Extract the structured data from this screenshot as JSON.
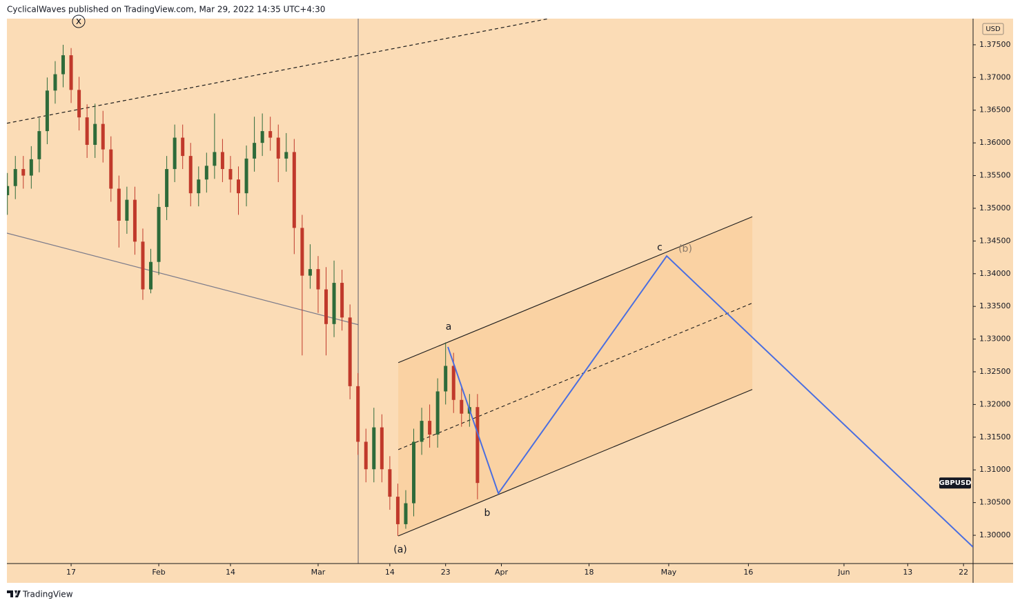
{
  "header": {
    "text": "CyclicalWaves published on TradingView.com, Mar 29, 2022 14:35 UTC+4:30"
  },
  "footer": {
    "brand": "TradingView"
  },
  "annotations": {
    "x_wave": "x",
    "a": "a",
    "b": "b",
    "c": "c",
    "b_wave": "(b)",
    "a_wave": "(a)"
  },
  "chart_data": {
    "type": "candlestick",
    "symbol": "GBPUSD",
    "currency": "USD",
    "up_color": "#2e6b3a",
    "down_color": "#c0392b",
    "grid": false,
    "x": [
      -8,
      -7,
      -6,
      -5,
      -4,
      -3,
      -2,
      -1,
      0,
      1,
      2,
      3,
      4,
      5,
      6,
      7,
      8,
      9,
      10,
      11,
      12,
      13,
      14,
      15,
      16,
      17,
      18,
      19,
      20,
      21,
      22,
      23,
      24,
      25,
      26,
      27,
      28,
      29,
      30,
      31,
      32,
      33,
      34,
      35,
      36,
      37,
      38,
      39,
      40,
      41,
      42,
      43,
      44,
      45,
      46,
      47,
      48,
      49,
      50,
      51
    ],
    "open": [
      1.352,
      1.3534,
      1.356,
      1.355,
      1.3575,
      1.3618,
      1.368,
      1.3705,
      1.3734,
      1.3681,
      1.3639,
      1.3597,
      1.3629,
      1.359,
      1.353,
      1.3481,
      1.3513,
      1.3449,
      1.3376,
      1.3418,
      1.3502,
      1.356,
      1.3608,
      1.358,
      1.3523,
      1.3544,
      1.3565,
      1.3586,
      1.356,
      1.3544,
      1.3523,
      1.3576,
      1.36,
      1.3618,
      1.3608,
      1.3576,
      1.3586,
      1.347,
      1.3397,
      1.3407,
      1.3376,
      1.3323,
      1.3386,
      1.3333,
      1.3228,
      1.3143,
      1.3101,
      1.3165,
      1.3101,
      1.3059,
      1.3017,
      1.3049,
      1.3143,
      1.3175,
      1.3154,
      1.322,
      1.3259,
      1.3207,
      1.3186,
      1.3196
    ],
    "high": [
      1.3554,
      1.358,
      1.358,
      1.3595,
      1.3638,
      1.37,
      1.3725,
      1.375,
      1.3745,
      1.3701,
      1.3659,
      1.366,
      1.3649,
      1.361,
      1.355,
      1.3533,
      1.3533,
      1.3469,
      1.3438,
      1.3522,
      1.358,
      1.3628,
      1.3628,
      1.36,
      1.3564,
      1.3585,
      1.3645,
      1.3606,
      1.358,
      1.3564,
      1.3596,
      1.364,
      1.3645,
      1.364,
      1.3628,
      1.3615,
      1.3606,
      1.349,
      1.3445,
      1.3427,
      1.341,
      1.342,
      1.3406,
      1.3353,
      1.3248,
      1.3163,
      1.3195,
      1.3185,
      1.3121,
      1.3079,
      1.3069,
      1.3163,
      1.3195,
      1.32,
      1.324,
      1.3295,
      1.3279,
      1.3227,
      1.3216,
      1.3216
    ],
    "low": [
      1.349,
      1.3514,
      1.353,
      1.353,
      1.3555,
      1.3598,
      1.366,
      1.3685,
      1.3661,
      1.3619,
      1.3577,
      1.3577,
      1.357,
      1.351,
      1.344,
      1.3461,
      1.3429,
      1.336,
      1.337,
      1.3398,
      1.3482,
      1.354,
      1.356,
      1.3503,
      1.3503,
      1.3524,
      1.3545,
      1.354,
      1.3524,
      1.349,
      1.3503,
      1.3556,
      1.358,
      1.3588,
      1.354,
      1.3556,
      1.343,
      1.3275,
      1.3377,
      1.334,
      1.3275,
      1.3303,
      1.3313,
      1.3208,
      1.3123,
      1.3081,
      1.3081,
      1.3081,
      1.3039,
      1.2999,
      1.301,
      1.3029,
      1.3123,
      1.3134,
      1.3134,
      1.32,
      1.3187,
      1.3166,
      1.3166,
      1.3055
    ],
    "close": [
      1.3534,
      1.356,
      1.355,
      1.3575,
      1.3618,
      1.368,
      1.3705,
      1.3734,
      1.3681,
      1.3639,
      1.3597,
      1.3629,
      1.359,
      1.353,
      1.3481,
      1.3513,
      1.3449,
      1.3376,
      1.3418,
      1.3502,
      1.356,
      1.3608,
      1.358,
      1.3523,
      1.3544,
      1.3565,
      1.3586,
      1.356,
      1.3544,
      1.3523,
      1.3576,
      1.36,
      1.3618,
      1.3608,
      1.3576,
      1.3586,
      1.347,
      1.3397,
      1.3407,
      1.3376,
      1.3323,
      1.3386,
      1.3333,
      1.3228,
      1.3143,
      1.3101,
      1.3165,
      1.3101,
      1.3059,
      1.3017,
      1.3049,
      1.3143,
      1.3175,
      1.3154,
      1.322,
      1.3259,
      1.3207,
      1.3186,
      1.3196,
      1.308
    ],
    "xlim": [
      -8.06,
      113.2
    ],
    "ylim": [
      1.29568,
      1.379
    ],
    "xticks": [
      {
        "value": 0,
        "label": "17"
      },
      {
        "value": 11,
        "label": "Feb"
      },
      {
        "value": 20,
        "label": "14"
      },
      {
        "value": 31,
        "label": "Mar"
      },
      {
        "value": 40,
        "label": "14"
      },
      {
        "value": 47,
        "label": "23"
      },
      {
        "value": 54,
        "label": "Apr"
      },
      {
        "value": 65,
        "label": "18"
      },
      {
        "value": 75,
        "label": "May"
      },
      {
        "value": 85,
        "label": "16"
      },
      {
        "value": 97,
        "label": "Jun"
      },
      {
        "value": 105,
        "label": "13"
      },
      {
        "value": 112,
        "label": "22"
      }
    ],
    "yticks": [
      {
        "value": 1.3,
        "label": "1.30000"
      },
      {
        "value": 1.305,
        "label": "1.30500"
      },
      {
        "value": 1.31,
        "label": "1.31000"
      },
      {
        "value": 1.315,
        "label": "1.31500"
      },
      {
        "value": 1.32,
        "label": "1.32000"
      },
      {
        "value": 1.325,
        "label": "1.32500"
      },
      {
        "value": 1.33,
        "label": "1.33000"
      },
      {
        "value": 1.335,
        "label": "1.33500"
      },
      {
        "value": 1.34,
        "label": "1.34000"
      },
      {
        "value": 1.345,
        "label": "1.34500"
      },
      {
        "value": 1.35,
        "label": "1.35000"
      },
      {
        "value": 1.355,
        "label": "1.35500"
      },
      {
        "value": 1.36,
        "label": "1.36000"
      },
      {
        "value": 1.365,
        "label": "1.36500"
      },
      {
        "value": 1.37,
        "label": "1.37000"
      },
      {
        "value": 1.375,
        "label": "1.37500"
      }
    ],
    "drawings": [
      {
        "kind": "line",
        "style": "dashed",
        "color": "#1a1a1a",
        "x": [
          -8.06,
          59.94
        ],
        "y": [
          1.363,
          1.379
        ]
      },
      {
        "kind": "line",
        "style": "solid",
        "color": "#7a7a8a",
        "x": [
          -8.06,
          36.03
        ],
        "y": [
          1.3462,
          1.3322
        ]
      },
      {
        "kind": "vline",
        "color": "#5a5a6a",
        "x": 36.03
      },
      {
        "kind": "channel",
        "color": "#1a1a1a",
        "fill": "#f9cf9c",
        "x": [
          41.06,
          85.49
        ],
        "upper": [
          1.3264,
          1.3487
        ],
        "middle": [
          1.3131,
          1.3355
        ],
        "lower": [
          1.2999,
          1.3223
        ]
      },
      {
        "kind": "path",
        "color": "#4a6ee0",
        "x": [
          47.29,
          53.62,
          74.75,
          113.2
        ],
        "y": [
          1.3288,
          1.3064,
          1.3427,
          1.2982
        ]
      }
    ]
  }
}
